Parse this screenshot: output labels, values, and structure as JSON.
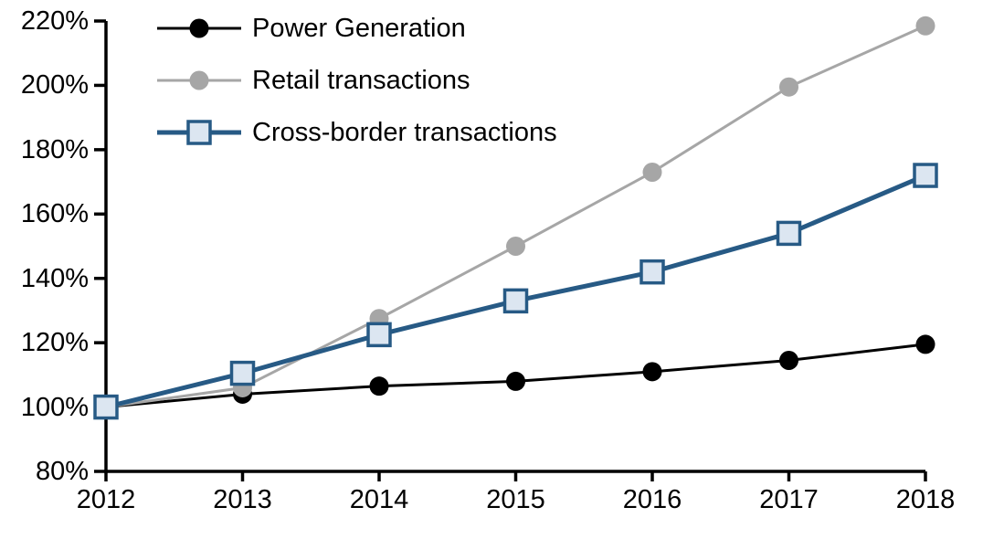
{
  "chart_data": {
    "type": "line",
    "title": "",
    "x_categories": [
      "2012",
      "2013",
      "2014",
      "2015",
      "2016",
      "2017",
      "2018"
    ],
    "series": [
      {
        "name": "Power Generation",
        "values": [
          100,
          104,
          106.5,
          108,
          111,
          114.5,
          119.5
        ],
        "color": "#000000",
        "line_width": 3,
        "marker": "circle",
        "marker_fill": "#000000",
        "marker_stroke": "#000000"
      },
      {
        "name": "Retail transactions",
        "values": [
          100,
          106,
          127.5,
          150,
          173,
          199.5,
          218.5
        ],
        "color": "#a6a6a6",
        "line_width": 3,
        "marker": "circle",
        "marker_fill": "#a6a6a6",
        "marker_stroke": "#a6a6a6"
      },
      {
        "name": "Cross-border transactions",
        "values": [
          100,
          110.5,
          122.5,
          133,
          142,
          154,
          172
        ],
        "color": "#275a85",
        "line_width": 5,
        "marker": "square",
        "marker_fill": "#dce6f1",
        "marker_stroke": "#275a85"
      }
    ],
    "ylim": [
      80,
      220
    ],
    "ytick_step": 20,
    "ytick_labels": [
      "220%",
      "200%",
      "180%",
      "160%",
      "140%",
      "120%",
      "100%",
      "80%"
    ],
    "xlabel": "",
    "ylabel": "",
    "grid": false,
    "legend_position": "top-left",
    "axis_color": "#000000",
    "background_color": "#ffffff"
  }
}
